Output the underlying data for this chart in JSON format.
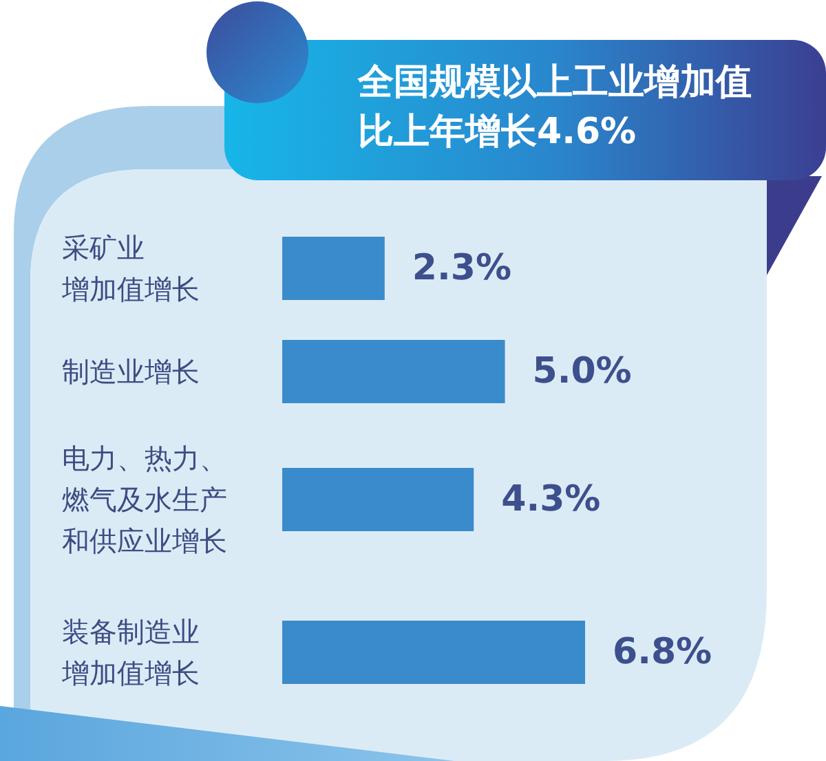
{
  "chart_data": {
    "type": "bar",
    "orientation": "horizontal",
    "title": "全国规模以上工业增加值比上年增长4.6%",
    "categories": [
      "采矿业增加值增长",
      "制造业增长",
      "电力、热力、燃气及水生产和供应业增长",
      "装备制造业增加值增长"
    ],
    "values": [
      2.3,
      5.0,
      4.3,
      6.8
    ],
    "color": "#3a8bcb",
    "value_labels": [
      "2.3%",
      "5.0%",
      "4.3%",
      "6.8%"
    ],
    "tick_labels": "y"
  }
}
